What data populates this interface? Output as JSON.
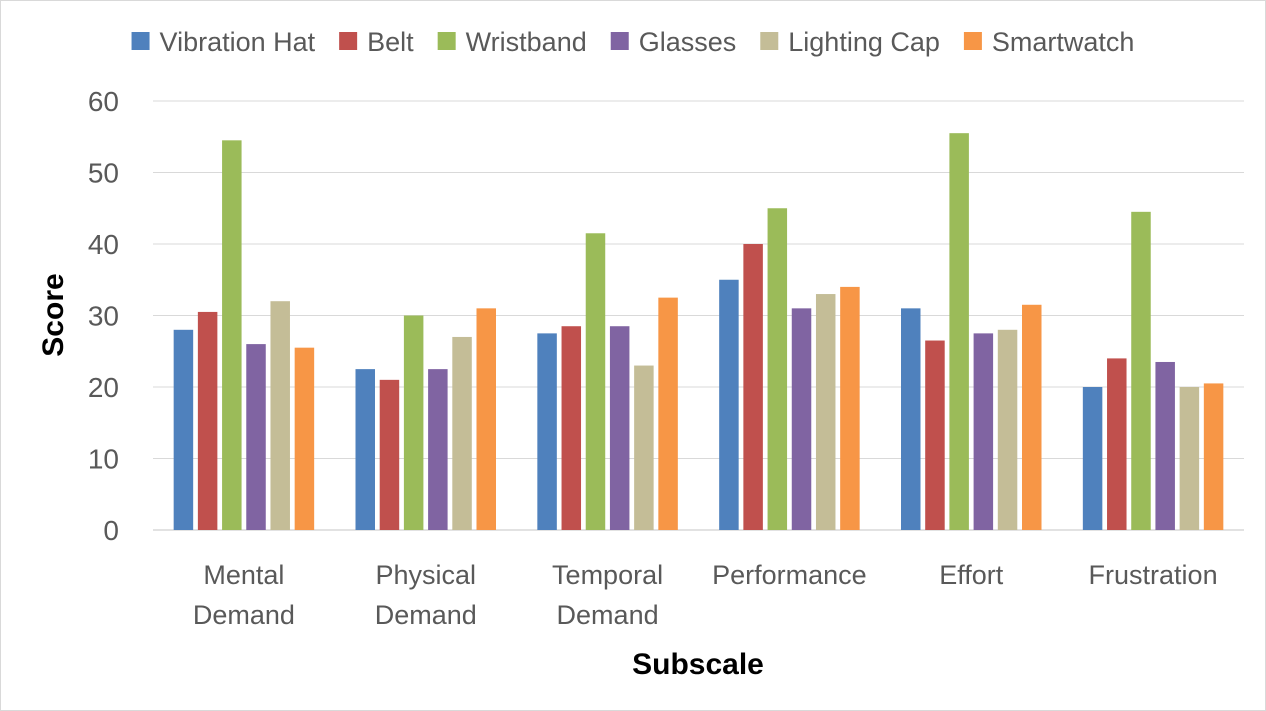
{
  "chart_data": {
    "type": "bar",
    "title": "",
    "xlabel": "Subscale",
    "ylabel": "Score",
    "ylim": [
      0,
      60
    ],
    "yticks": [
      0,
      10,
      20,
      30,
      40,
      50,
      60
    ],
    "grid": true,
    "legend_position": "top",
    "categories": [
      [
        "Mental",
        "Demand"
      ],
      [
        "Physical",
        "Demand"
      ],
      [
        "Temporal",
        "Demand"
      ],
      [
        "Performance"
      ],
      [
        "Effort"
      ],
      [
        "Frustration"
      ]
    ],
    "series": [
      {
        "name": "Vibration Hat",
        "color": "#4f81bd",
        "values": [
          28,
          22.5,
          27.5,
          35,
          31,
          20
        ]
      },
      {
        "name": "Belt",
        "color": "#c0504d",
        "values": [
          30.5,
          21,
          28.5,
          40,
          26.5,
          24
        ]
      },
      {
        "name": "Wristband",
        "color": "#9bbb59",
        "values": [
          54.5,
          30,
          41.5,
          45,
          55.5,
          44.5
        ]
      },
      {
        "name": "Glasses",
        "color": "#8064a2",
        "values": [
          26,
          22.5,
          28.5,
          31,
          27.5,
          23.5
        ]
      },
      {
        "name": "Lighting Cap",
        "color": "#c4bd97",
        "values": [
          32,
          27,
          23,
          33,
          28,
          20
        ]
      },
      {
        "name": "Smartwatch",
        "color": "#f79646",
        "values": [
          25.5,
          31,
          32.5,
          34,
          31.5,
          20.5
        ]
      }
    ]
  }
}
